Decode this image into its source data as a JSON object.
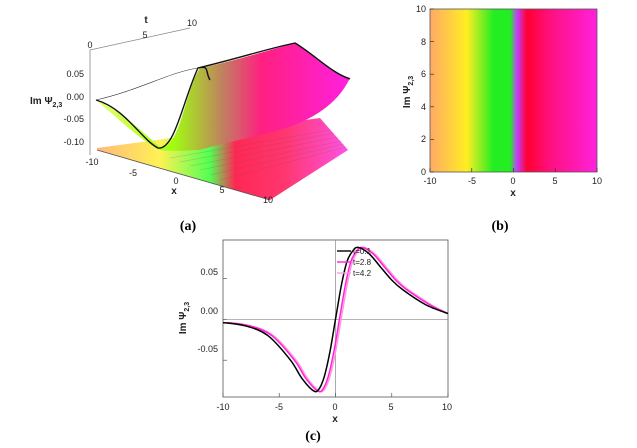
{
  "panels": {
    "a": {
      "label": "(a)"
    },
    "b": {
      "label": "(b)"
    },
    "c": {
      "label": "(c)"
    }
  },
  "chart_data": [
    {
      "id": "a",
      "type": "surface3d",
      "zlabel_main": "Im Ψ",
      "zlabel_sub": "2,3",
      "xlabel": "x",
      "tlabel": "t",
      "x_ticks": [
        "-10",
        "-5",
        "0",
        "5",
        "10"
      ],
      "t_ticks": [
        "0",
        "5",
        "10"
      ],
      "z_ticks": [
        "0.05",
        "0.00",
        "-0.05",
        "-0.10"
      ],
      "xlim": [
        -10,
        10
      ],
      "tlim": [
        0,
        10
      ],
      "zlim": [
        -0.12,
        0.09
      ],
      "profile": {
        "x": [
          -10,
          -8,
          -6,
          -4,
          -3,
          -2,
          -1.5,
          -1,
          -0.5,
          0,
          0.5,
          1,
          2,
          3,
          4,
          6,
          8,
          10
        ],
        "y": [
          -0.004,
          -0.008,
          -0.02,
          -0.05,
          -0.072,
          -0.088,
          -0.086,
          -0.07,
          -0.04,
          0.0,
          0.04,
          0.07,
          0.088,
          0.078,
          0.062,
          0.035,
          0.018,
          0.007
        ]
      }
    },
    {
      "id": "b",
      "type": "density",
      "xlabel": "x",
      "ylabel_main": "Im Ψ",
      "ylabel_sub": "2,3",
      "x_ticks": [
        "-10",
        "-5",
        "0",
        "5",
        "10"
      ],
      "y_ticks": [
        "0",
        "2",
        "4",
        "6",
        "8",
        "10"
      ],
      "xlim": [
        -10,
        10
      ],
      "ylim": [
        0,
        10
      ],
      "colors": [
        "#ffaa66",
        "#ffee22",
        "#22ee22",
        "#c040ff",
        "#ff0030",
        "#ff22dd"
      ]
    },
    {
      "id": "c",
      "type": "line",
      "xlabel": "x",
      "ylabel_main": "Im Ψ",
      "ylabel_sub": "2,3",
      "x_ticks": [
        "-10",
        "-5",
        "0",
        "5",
        "10"
      ],
      "y_ticks": [
        "0.05",
        "0.00",
        "-0.05"
      ],
      "xlim": [
        -10,
        10
      ],
      "ylim": [
        -0.095,
        0.097
      ],
      "x": [
        -10,
        -8,
        -6,
        -4,
        -3,
        -2,
        -1.5,
        -1,
        -0.5,
        0,
        0.5,
        1,
        1.5,
        2,
        3,
        4,
        5,
        6,
        8,
        10
      ],
      "series": [
        {
          "name": "t=0.1",
          "color": "#000000",
          "shift": 0.0,
          "values": [
            -0.004,
            -0.008,
            -0.02,
            -0.05,
            -0.072,
            -0.087,
            -0.086,
            -0.07,
            -0.04,
            0.0,
            0.04,
            0.07,
            0.083,
            0.088,
            0.08,
            0.064,
            0.048,
            0.036,
            0.018,
            0.007
          ]
        },
        {
          "name": "t=2.8",
          "color": "#ff22dd",
          "shift": 0.35,
          "values": [
            -0.004,
            -0.008,
            -0.02,
            -0.05,
            -0.072,
            -0.087,
            -0.086,
            -0.07,
            -0.04,
            0.0,
            0.04,
            0.07,
            0.083,
            0.088,
            0.08,
            0.064,
            0.048,
            0.036,
            0.018,
            0.007
          ]
        },
        {
          "name": "t=4.2",
          "color": "#ff99dd",
          "shift": 0.5,
          "values": [
            -0.004,
            -0.008,
            -0.02,
            -0.05,
            -0.072,
            -0.087,
            -0.086,
            -0.07,
            -0.04,
            0.0,
            0.04,
            0.07,
            0.083,
            0.088,
            0.08,
            0.064,
            0.048,
            0.036,
            0.018,
            0.007
          ]
        }
      ]
    }
  ]
}
